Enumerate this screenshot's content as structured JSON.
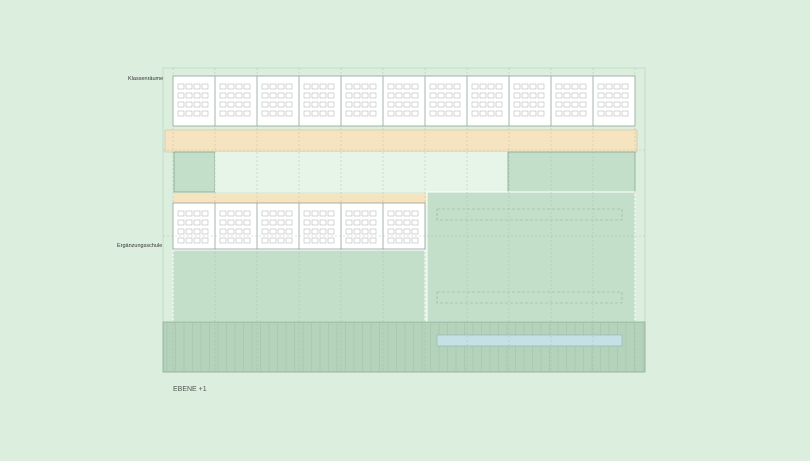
{
  "labels": {
    "classrooms": "Klassenräume",
    "supplementary_school": "Ergänzungsschule"
  },
  "level": "EBENE +1"
}
